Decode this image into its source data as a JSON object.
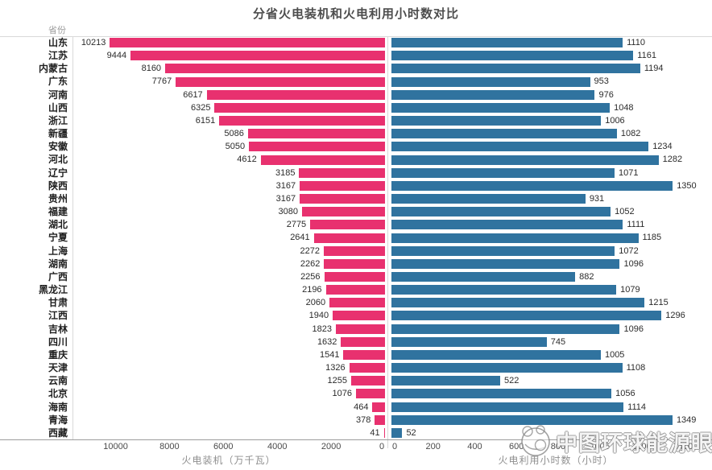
{
  "title": "分省火电装机和火电利用小时数对比",
  "column_header": "省份",
  "watermark": {
    "text": "中图环球能源眼",
    "logo": "panda-globe-logo"
  },
  "colors": {
    "capacity_bar": "#e8316f",
    "hours_bar": "#30739f",
    "title_text": "#4d4d4d",
    "grid_line": "#d9d9d9",
    "axis_line": "#9c9c9c"
  },
  "chart_data": {
    "type": "bar",
    "subtype": "diverging-horizontal",
    "title": "分省火电装机和火电利用小时数对比",
    "categories_header": "省份",
    "categories": [
      "山东",
      "江苏",
      "内蒙古",
      "广东",
      "河南",
      "山西",
      "浙江",
      "新疆",
      "安徽",
      "河北",
      "辽宁",
      "陕西",
      "贵州",
      "福建",
      "湖北",
      "宁夏",
      "上海",
      "湖南",
      "广西",
      "黑龙江",
      "甘肃",
      "江西",
      "吉林",
      "四川",
      "重庆",
      "天津",
      "云南",
      "北京",
      "海南",
      "青海",
      "西藏"
    ],
    "series": [
      {
        "name": "火电装机",
        "axis_label": "火电装机（万千瓦）",
        "direction": "left",
        "color": "#e8316f",
        "xlim": [
          0,
          11600
        ],
        "ticks": [
          10000,
          8000,
          6000,
          4000,
          2000,
          0
        ],
        "values": [
          10213,
          9444,
          8160,
          7767,
          6617,
          6325,
          6151,
          5086,
          5050,
          4612,
          3185,
          3167,
          3167,
          3080,
          2775,
          2641,
          2272,
          2262,
          2256,
          2196,
          2060,
          1940,
          1823,
          1632,
          1541,
          1326,
          1255,
          1076,
          464,
          378,
          41
        ]
      },
      {
        "name": "火电利用小时数",
        "axis_label": "火电利用小时数（小时）",
        "direction": "right",
        "color": "#30739f",
        "xlim": [
          0,
          1500
        ],
        "ticks": [
          0,
          200,
          400,
          600,
          800,
          1000,
          1200,
          1400
        ],
        "values": [
          1110,
          1161,
          1194,
          953,
          976,
          1048,
          1006,
          1082,
          1234,
          1282,
          1071,
          1350,
          931,
          1052,
          1111,
          1185,
          1072,
          1096,
          882,
          1079,
          1215,
          1296,
          1096,
          745,
          1005,
          1108,
          522,
          1056,
          1114,
          1349,
          52
        ]
      }
    ],
    "legend": "none",
    "grid": "off"
  }
}
